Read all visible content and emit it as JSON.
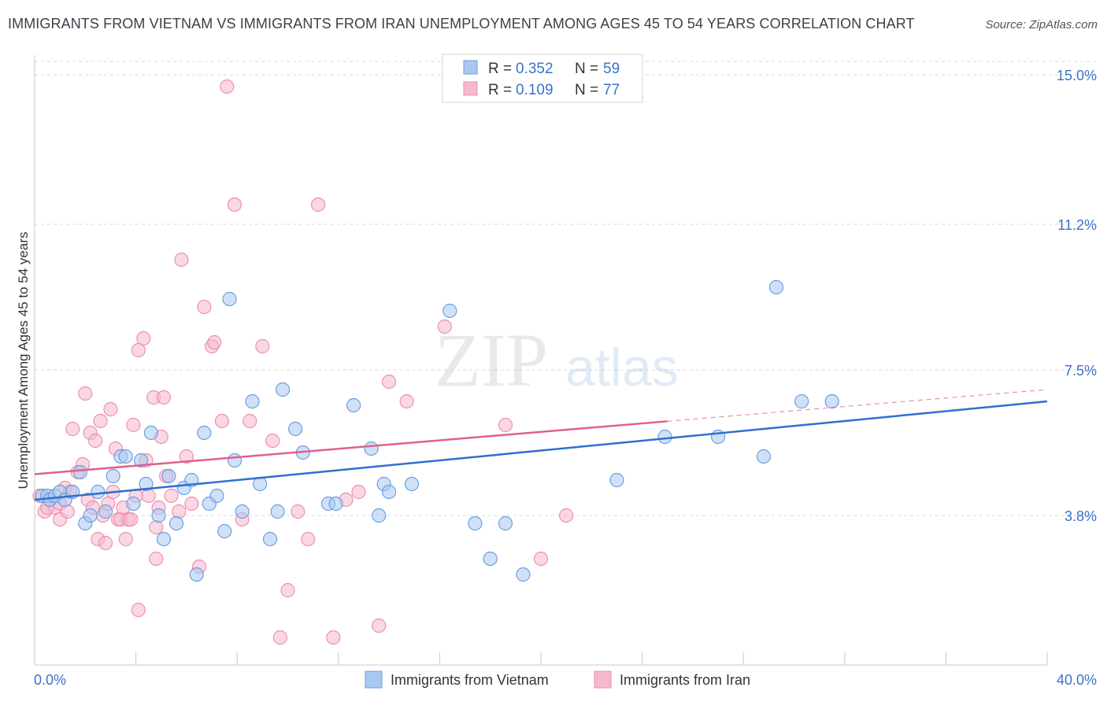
{
  "title": "IMMIGRANTS FROM VIETNAM VS IMMIGRANTS FROM IRAN UNEMPLOYMENT AMONG AGES 45 TO 54 YEARS CORRELATION CHART",
  "source": "Source: ZipAtlas.com",
  "watermark": {
    "zip": "ZIP",
    "atlas": "atlas"
  },
  "legend": [
    {
      "r_label": "R =",
      "r_value": "0.352",
      "n_label": "N =",
      "n_value": "59"
    },
    {
      "r_label": "R =",
      "r_value": "0.109",
      "n_label": "N =",
      "n_value": "77"
    }
  ],
  "colors": {
    "vietnam_fill": "#a9c8f0",
    "vietnam_stroke": "#6a9ee0",
    "vietnam_line": "#2f6fd0",
    "iran_fill": "#f6b8cc",
    "iran_stroke": "#ee8fae",
    "iran_line": "#e0608c",
    "value_text": "#3a72c7",
    "grid": "#d8d8d8"
  },
  "chart_data": {
    "type": "scatter",
    "title": "IMMIGRANTS FROM VIETNAM VS IMMIGRANTS FROM IRAN UNEMPLOYMENT AMONG AGES 45 TO 54 YEARS CORRELATION CHART",
    "xlabel": "",
    "ylabel": "Unemployment Among Ages 45 to 54 years",
    "xlim": [
      0,
      40
    ],
    "ylim": [
      0,
      15.5
    ],
    "x_tick_labels": [
      {
        "value": 0,
        "label": "0.0%"
      },
      {
        "value": 40,
        "label": "40.0%"
      }
    ],
    "y_tick_labels": [
      {
        "value": 3.8,
        "label": "3.8%"
      },
      {
        "value": 7.5,
        "label": "7.5%"
      },
      {
        "value": 11.2,
        "label": "11.2%"
      },
      {
        "value": 15.0,
        "label": "15.0%"
      }
    ],
    "y_gridlines": [
      3.8,
      7.5,
      11.2,
      15.0
    ],
    "x_minor_ticks": [
      4,
      8,
      12,
      16,
      20,
      24,
      28,
      32,
      36,
      40
    ],
    "series": [
      {
        "name": "Immigrants from Vietnam",
        "key": "vietnam",
        "trend": {
          "x0": 0,
          "y0": 4.2,
          "x1": 40,
          "y1": 6.7,
          "dash_from": null
        },
        "points": [
          [
            0.3,
            4.3
          ],
          [
            0.5,
            4.3
          ],
          [
            0.6,
            4.2
          ],
          [
            0.8,
            4.3
          ],
          [
            1.0,
            4.4
          ],
          [
            1.2,
            4.2
          ],
          [
            1.5,
            4.4
          ],
          [
            1.8,
            4.9
          ],
          [
            2.0,
            3.6
          ],
          [
            2.2,
            3.8
          ],
          [
            2.5,
            4.4
          ],
          [
            2.8,
            3.9
          ],
          [
            3.1,
            4.8
          ],
          [
            3.4,
            5.3
          ],
          [
            3.6,
            5.3
          ],
          [
            3.9,
            4.1
          ],
          [
            4.2,
            5.2
          ],
          [
            4.4,
            4.6
          ],
          [
            4.6,
            5.9
          ],
          [
            4.9,
            3.8
          ],
          [
            5.1,
            3.2
          ],
          [
            5.3,
            4.8
          ],
          [
            5.6,
            3.6
          ],
          [
            5.9,
            4.5
          ],
          [
            6.2,
            4.7
          ],
          [
            6.4,
            2.3
          ],
          [
            6.7,
            5.9
          ],
          [
            6.9,
            4.1
          ],
          [
            7.2,
            4.3
          ],
          [
            7.5,
            3.4
          ],
          [
            7.7,
            9.3
          ],
          [
            7.9,
            5.2
          ],
          [
            8.2,
            3.9
          ],
          [
            8.6,
            6.7
          ],
          [
            8.9,
            4.6
          ],
          [
            9.3,
            3.2
          ],
          [
            9.6,
            3.9
          ],
          [
            9.8,
            7.0
          ],
          [
            10.3,
            6.0
          ],
          [
            10.6,
            5.4
          ],
          [
            11.6,
            4.1
          ],
          [
            11.9,
            4.1
          ],
          [
            12.6,
            6.6
          ],
          [
            13.3,
            5.5
          ],
          [
            13.6,
            3.8
          ],
          [
            13.8,
            4.6
          ],
          [
            14.0,
            4.4
          ],
          [
            14.9,
            4.6
          ],
          [
            16.4,
            9.0
          ],
          [
            17.4,
            3.6
          ],
          [
            18.0,
            2.7
          ],
          [
            18.6,
            3.6
          ],
          [
            19.3,
            2.3
          ],
          [
            23.0,
            4.7
          ],
          [
            24.9,
            5.8
          ],
          [
            27.0,
            5.8
          ],
          [
            28.8,
            5.3
          ],
          [
            29.3,
            9.6
          ],
          [
            30.3,
            6.7
          ],
          [
            31.5,
            6.7
          ]
        ]
      },
      {
        "name": "Immigrants from Iran",
        "key": "iran",
        "trend": {
          "x0": 0,
          "y0": 4.85,
          "x1": 40,
          "y1": 7.0,
          "dash_from": 25
        },
        "points": [
          [
            0.2,
            4.3
          ],
          [
            0.4,
            3.9
          ],
          [
            0.6,
            4.2
          ],
          [
            0.8,
            4.0
          ],
          [
            1.0,
            3.7
          ],
          [
            1.2,
            4.5
          ],
          [
            1.4,
            4.4
          ],
          [
            1.5,
            6.0
          ],
          [
            1.7,
            4.9
          ],
          [
            1.9,
            5.1
          ],
          [
            2.0,
            6.9
          ],
          [
            2.1,
            4.2
          ],
          [
            2.2,
            5.9
          ],
          [
            2.4,
            5.7
          ],
          [
            2.5,
            3.2
          ],
          [
            2.6,
            6.2
          ],
          [
            2.7,
            3.8
          ],
          [
            2.8,
            3.1
          ],
          [
            2.9,
            4.1
          ],
          [
            3.0,
            6.5
          ],
          [
            3.1,
            4.4
          ],
          [
            3.2,
            5.5
          ],
          [
            3.3,
            3.7
          ],
          [
            3.4,
            3.7
          ],
          [
            3.5,
            4.0
          ],
          [
            3.6,
            3.2
          ],
          [
            3.7,
            3.7
          ],
          [
            3.9,
            6.1
          ],
          [
            4.0,
            4.3
          ],
          [
            4.1,
            8.0
          ],
          [
            4.1,
            1.4
          ],
          [
            4.3,
            8.3
          ],
          [
            4.4,
            5.2
          ],
          [
            4.5,
            4.3
          ],
          [
            4.7,
            6.8
          ],
          [
            4.8,
            3.5
          ],
          [
            4.8,
            2.7
          ],
          [
            5.0,
            5.8
          ],
          [
            5.1,
            6.8
          ],
          [
            5.2,
            4.8
          ],
          [
            5.4,
            4.3
          ],
          [
            5.7,
            3.9
          ],
          [
            5.8,
            10.3
          ],
          [
            6.0,
            5.3
          ],
          [
            6.2,
            4.1
          ],
          [
            6.5,
            2.5
          ],
          [
            6.7,
            9.1
          ],
          [
            7.0,
            8.1
          ],
          [
            7.1,
            8.2
          ],
          [
            7.4,
            6.2
          ],
          [
            7.6,
            14.7
          ],
          [
            7.9,
            11.7
          ],
          [
            8.2,
            3.7
          ],
          [
            8.5,
            6.2
          ],
          [
            9.0,
            8.1
          ],
          [
            9.4,
            5.7
          ],
          [
            9.7,
            0.7
          ],
          [
            10.0,
            1.9
          ],
          [
            10.4,
            3.9
          ],
          [
            10.8,
            3.2
          ],
          [
            11.2,
            11.7
          ],
          [
            11.8,
            0.7
          ],
          [
            12.3,
            4.2
          ],
          [
            12.8,
            4.4
          ],
          [
            13.6,
            1.0
          ],
          [
            14.0,
            7.2
          ],
          [
            14.7,
            6.7
          ],
          [
            16.2,
            8.6
          ],
          [
            18.6,
            6.1
          ],
          [
            20.0,
            2.7
          ],
          [
            21.0,
            3.8
          ],
          [
            0.5,
            4.0
          ],
          [
            1.0,
            4.1
          ],
          [
            1.3,
            3.9
          ],
          [
            2.3,
            4.0
          ],
          [
            3.8,
            3.7
          ],
          [
            4.9,
            4.0
          ]
        ]
      }
    ]
  },
  "bottom_legend": [
    {
      "label": "Immigrants from Vietnam"
    },
    {
      "label": "Immigrants from Iran"
    }
  ]
}
